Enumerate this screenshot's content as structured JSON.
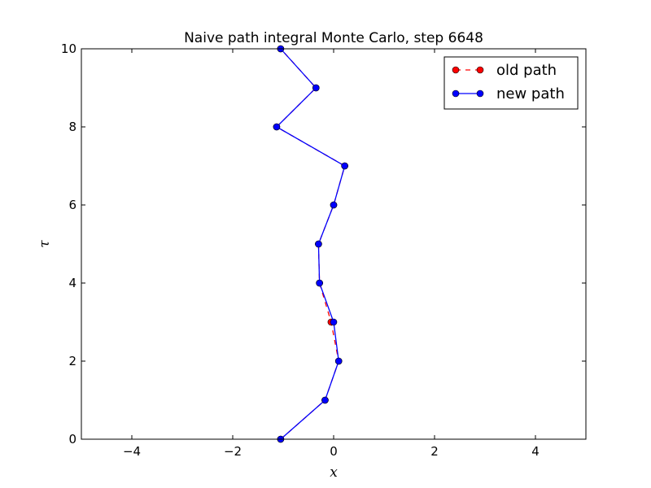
{
  "chart_data": {
    "type": "line",
    "title": "Naive path integral Monte Carlo, step 6648",
    "xlabel": "x",
    "ylabel": "τ",
    "xlim": [
      -5,
      5
    ],
    "ylim": [
      0,
      10
    ],
    "xticks": [
      -4,
      -2,
      0,
      2,
      4
    ],
    "xtick_labels": [
      "−4",
      "−2",
      "0",
      "2",
      "4"
    ],
    "yticks": [
      0,
      2,
      4,
      6,
      8,
      10
    ],
    "ytick_labels": [
      "0",
      "2",
      "4",
      "6",
      "8",
      "10"
    ],
    "grid": false,
    "legend_position": "top-right",
    "series": [
      {
        "name": "old path",
        "color": "#ff0000",
        "line_style": "dashed",
        "marker": "circle",
        "x": [
          -1.05,
          -0.17,
          0.1,
          -0.05,
          -0.28,
          -0.3,
          0.0,
          0.22,
          -1.13,
          -0.35,
          -1.05
        ],
        "y": [
          0,
          1,
          2,
          3,
          4,
          5,
          6,
          7,
          8,
          9,
          10
        ]
      },
      {
        "name": "new path",
        "color": "#0000ff",
        "line_style": "solid",
        "marker": "circle",
        "x": [
          -1.05,
          -0.17,
          0.1,
          0.0,
          -0.28,
          -0.3,
          0.0,
          0.22,
          -1.13,
          -0.35,
          -1.05
        ],
        "y": [
          0,
          1,
          2,
          3,
          4,
          5,
          6,
          7,
          8,
          9,
          10
        ]
      }
    ]
  }
}
